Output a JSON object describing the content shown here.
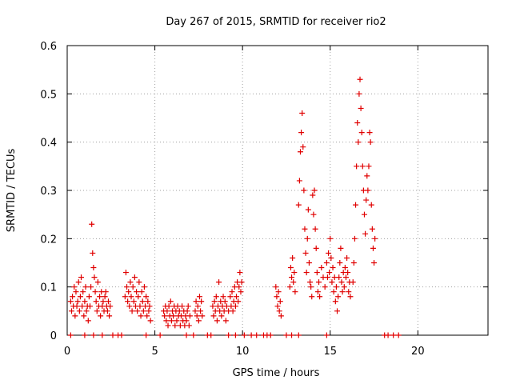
{
  "chart_data": {
    "type": "scatter",
    "title": "Day 267 of 2015, SRMTID for receiver rio2",
    "xlabel": "GPS time / hours",
    "ylabel": "SRMTID / TECUs",
    "xlim": [
      0,
      24
    ],
    "ylim": [
      0,
      0.6
    ],
    "xticks": [
      0,
      5,
      10,
      15,
      20
    ],
    "xtick_labels": [
      "0",
      "5",
      "10",
      "15",
      "20"
    ],
    "yticks": [
      0,
      0.1,
      0.2,
      0.3,
      0.4,
      0.5,
      0.6
    ],
    "ytick_labels": [
      "0",
      "0.1",
      "0.2",
      "0.3",
      "0.4",
      "0.5",
      "0.6"
    ],
    "grid": true,
    "marker": "plus",
    "color": "#e00000",
    "series": [
      {
        "name": "rio2",
        "points": [
          [
            0.2,
            0.07
          ],
          [
            0.25,
            0.05
          ],
          [
            0.3,
            0.08
          ],
          [
            0.35,
            0.06
          ],
          [
            0.4,
            0.1
          ],
          [
            0.45,
            0.04
          ],
          [
            0.5,
            0.09
          ],
          [
            0.55,
            0.06
          ],
          [
            0.6,
            0.07
          ],
          [
            0.65,
            0.11
          ],
          [
            0.7,
            0.05
          ],
          [
            0.75,
            0.08
          ],
          [
            0.8,
            0.12
          ],
          [
            0.85,
            0.06
          ],
          [
            0.9,
            0.09
          ],
          [
            0.95,
            0.04
          ],
          [
            1.0,
            0.07
          ],
          [
            1.05,
            0.1
          ],
          [
            1.1,
            0.05
          ],
          [
            1.15,
            0.06
          ],
          [
            1.2,
            0.03
          ],
          [
            1.25,
            0.08
          ],
          [
            1.3,
            0.06
          ],
          [
            1.35,
            0.1
          ],
          [
            1.4,
            0.23
          ],
          [
            1.45,
            0.17
          ],
          [
            1.5,
            0.14
          ],
          [
            1.55,
            0.12
          ],
          [
            1.6,
            0.09
          ],
          [
            1.65,
            0.07
          ],
          [
            1.7,
            0.05
          ],
          [
            1.75,
            0.11
          ],
          [
            1.8,
            0.06
          ],
          [
            1.85,
            0.08
          ],
          [
            1.9,
            0.04
          ],
          [
            1.95,
            0.09
          ],
          [
            2.0,
            0.06
          ],
          [
            2.05,
            0.07
          ],
          [
            2.1,
            0.05
          ],
          [
            2.15,
            0.08
          ],
          [
            2.2,
            0.09
          ],
          [
            2.25,
            0.06
          ],
          [
            2.3,
            0.05
          ],
          [
            2.35,
            0.07
          ],
          [
            2.4,
            0.04
          ],
          [
            2.45,
            0.06
          ],
          [
            3.3,
            0.08
          ],
          [
            3.35,
            0.13
          ],
          [
            3.4,
            0.1
          ],
          [
            3.45,
            0.07
          ],
          [
            3.5,
            0.09
          ],
          [
            3.55,
            0.06
          ],
          [
            3.6,
            0.11
          ],
          [
            3.65,
            0.08
          ],
          [
            3.7,
            0.05
          ],
          [
            3.75,
            0.1
          ],
          [
            3.8,
            0.07
          ],
          [
            3.85,
            0.12
          ],
          [
            3.9,
            0.06
          ],
          [
            3.95,
            0.09
          ],
          [
            4.0,
            0.05
          ],
          [
            4.05,
            0.08
          ],
          [
            4.1,
            0.11
          ],
          [
            4.15,
            0.06
          ],
          [
            4.2,
            0.04
          ],
          [
            4.25,
            0.09
          ],
          [
            4.3,
            0.07
          ],
          [
            4.35,
            0.05
          ],
          [
            4.4,
            0.1
          ],
          [
            4.45,
            0.06
          ],
          [
            4.5,
            0.08
          ],
          [
            4.55,
            0.04
          ],
          [
            4.6,
            0.07
          ],
          [
            4.65,
            0.05
          ],
          [
            4.7,
            0.06
          ],
          [
            4.75,
            0.03
          ],
          [
            5.5,
            0.05
          ],
          [
            5.55,
            0.04
          ],
          [
            5.6,
            0.06
          ],
          [
            5.65,
            0.03
          ],
          [
            5.7,
            0.05
          ],
          [
            5.75,
            0.02
          ],
          [
            5.8,
            0.06
          ],
          [
            5.85,
            0.04
          ],
          [
            5.9,
            0.07
          ],
          [
            5.95,
            0.03
          ],
          [
            6.0,
            0.05
          ],
          [
            6.05,
            0.04
          ],
          [
            6.1,
            0.06
          ],
          [
            6.15,
            0.02
          ],
          [
            6.2,
            0.05
          ],
          [
            6.25,
            0.03
          ],
          [
            6.3,
            0.06
          ],
          [
            6.35,
            0.04
          ],
          [
            6.4,
            0.05
          ],
          [
            6.45,
            0.02
          ],
          [
            6.5,
            0.04
          ],
          [
            6.55,
            0.06
          ],
          [
            6.6,
            0.03
          ],
          [
            6.65,
            0.05
          ],
          [
            6.7,
            0.02
          ],
          [
            6.75,
            0.04
          ],
          [
            6.8,
            0.03
          ],
          [
            6.85,
            0.05
          ],
          [
            6.9,
            0.06
          ],
          [
            6.95,
            0.02
          ],
          [
            7.0,
            0.04
          ],
          [
            7.3,
            0.05
          ],
          [
            7.35,
            0.07
          ],
          [
            7.4,
            0.04
          ],
          [
            7.45,
            0.06
          ],
          [
            7.5,
            0.03
          ],
          [
            7.55,
            0.08
          ],
          [
            7.6,
            0.05
          ],
          [
            7.65,
            0.07
          ],
          [
            7.7,
            0.04
          ],
          [
            8.3,
            0.06
          ],
          [
            8.35,
            0.04
          ],
          [
            8.4,
            0.07
          ],
          [
            8.45,
            0.05
          ],
          [
            8.5,
            0.08
          ],
          [
            8.55,
            0.03
          ],
          [
            8.6,
            0.06
          ],
          [
            8.65,
            0.11
          ],
          [
            8.7,
            0.05
          ],
          [
            8.75,
            0.07
          ],
          [
            8.8,
            0.04
          ],
          [
            8.85,
            0.06
          ],
          [
            8.9,
            0.08
          ],
          [
            8.95,
            0.05
          ],
          [
            9.0,
            0.07
          ],
          [
            9.05,
            0.03
          ],
          [
            9.1,
            0.06
          ],
          [
            9.2,
            0.05
          ],
          [
            9.3,
            0.08
          ],
          [
            9.35,
            0.06
          ],
          [
            9.4,
            0.09
          ],
          [
            9.45,
            0.05
          ],
          [
            9.5,
            0.07
          ],
          [
            9.55,
            0.1
          ],
          [
            9.6,
            0.06
          ],
          [
            9.65,
            0.08
          ],
          [
            9.7,
            0.11
          ],
          [
            9.75,
            0.07
          ],
          [
            9.8,
            0.1
          ],
          [
            9.85,
            0.13
          ],
          [
            9.9,
            0.09
          ],
          [
            9.95,
            0.11
          ],
          [
            11.9,
            0.1
          ],
          [
            11.95,
            0.08
          ],
          [
            12.0,
            0.06
          ],
          [
            12.05,
            0.09
          ],
          [
            12.1,
            0.05
          ],
          [
            12.15,
            0.07
          ],
          [
            12.2,
            0.04
          ],
          [
            12.7,
            0.1
          ],
          [
            12.75,
            0.14
          ],
          [
            12.8,
            0.12
          ],
          [
            12.85,
            0.16
          ],
          [
            12.9,
            0.11
          ],
          [
            12.95,
            0.13
          ],
          [
            13.0,
            0.09
          ],
          [
            13.2,
            0.27
          ],
          [
            13.25,
            0.32
          ],
          [
            13.3,
            0.38
          ],
          [
            13.35,
            0.42
          ],
          [
            13.4,
            0.46
          ],
          [
            13.45,
            0.39
          ],
          [
            13.5,
            0.3
          ],
          [
            13.55,
            0.22
          ],
          [
            13.6,
            0.17
          ],
          [
            13.65,
            0.13
          ],
          [
            13.7,
            0.2
          ],
          [
            13.75,
            0.26
          ],
          [
            13.8,
            0.15
          ],
          [
            13.85,
            0.11
          ],
          [
            13.9,
            0.1
          ],
          [
            13.95,
            0.08
          ],
          [
            14.0,
            0.29
          ],
          [
            14.05,
            0.25
          ],
          [
            14.1,
            0.3
          ],
          [
            14.15,
            0.22
          ],
          [
            14.2,
            0.18
          ],
          [
            14.25,
            0.13
          ],
          [
            14.3,
            0.09
          ],
          [
            14.35,
            0.11
          ],
          [
            14.4,
            0.08
          ],
          [
            14.5,
            0.14
          ],
          [
            14.6,
            0.12
          ],
          [
            14.7,
            0.1
          ],
          [
            14.8,
            0.15
          ],
          [
            14.85,
            0.12
          ],
          [
            14.9,
            0.17
          ],
          [
            14.95,
            0.13
          ],
          [
            15.0,
            0.2
          ],
          [
            15.05,
            0.16
          ],
          [
            15.1,
            0.11
          ],
          [
            15.15,
            0.14
          ],
          [
            15.2,
            0.09
          ],
          [
            15.25,
            0.12
          ],
          [
            15.3,
            0.07
          ],
          [
            15.35,
            0.1
          ],
          [
            15.4,
            0.05
          ],
          [
            15.45,
            0.08
          ],
          [
            15.5,
            0.12
          ],
          [
            15.55,
            0.15
          ],
          [
            15.6,
            0.18
          ],
          [
            15.65,
            0.11
          ],
          [
            15.7,
            0.09
          ],
          [
            15.75,
            0.13
          ],
          [
            15.8,
            0.1
          ],
          [
            15.85,
            0.14
          ],
          [
            15.9,
            0.12
          ],
          [
            15.95,
            0.16
          ],
          [
            16.0,
            0.13
          ],
          [
            16.05,
            0.09
          ],
          [
            16.1,
            0.11
          ],
          [
            16.15,
            0.08
          ],
          [
            16.3,
            0.11
          ],
          [
            16.35,
            0.15
          ],
          [
            16.4,
            0.2
          ],
          [
            16.45,
            0.27
          ],
          [
            16.5,
            0.35
          ],
          [
            16.55,
            0.44
          ],
          [
            16.6,
            0.4
          ],
          [
            16.65,
            0.5
          ],
          [
            16.7,
            0.53
          ],
          [
            16.75,
            0.47
          ],
          [
            16.8,
            0.42
          ],
          [
            16.85,
            0.35
          ],
          [
            16.9,
            0.3
          ],
          [
            16.95,
            0.25
          ],
          [
            17.0,
            0.21
          ],
          [
            17.05,
            0.28
          ],
          [
            17.1,
            0.33
          ],
          [
            17.15,
            0.3
          ],
          [
            17.2,
            0.35
          ],
          [
            17.25,
            0.42
          ],
          [
            17.3,
            0.4
          ],
          [
            17.35,
            0.27
          ],
          [
            17.4,
            0.22
          ],
          [
            17.45,
            0.18
          ],
          [
            17.5,
            0.15
          ],
          [
            17.55,
            0.2
          ],
          [
            0.2,
            0.0
          ],
          [
            1.0,
            0.0
          ],
          [
            1.5,
            0.0
          ],
          [
            2.0,
            0.0
          ],
          [
            2.6,
            0.0
          ],
          [
            2.9,
            0.0
          ],
          [
            3.1,
            0.0
          ],
          [
            4.5,
            0.0
          ],
          [
            5.3,
            0.0
          ],
          [
            6.8,
            0.0
          ],
          [
            7.2,
            0.0
          ],
          [
            8.0,
            0.0
          ],
          [
            8.2,
            0.0
          ],
          [
            9.2,
            0.0
          ],
          [
            9.6,
            0.0
          ],
          [
            10.1,
            0.0
          ],
          [
            10.5,
            0.0
          ],
          [
            10.8,
            0.0
          ],
          [
            11.2,
            0.0
          ],
          [
            11.4,
            0.0
          ],
          [
            11.6,
            0.0
          ],
          [
            12.5,
            0.0
          ],
          [
            12.8,
            0.0
          ],
          [
            13.2,
            0.0
          ],
          [
            14.8,
            0.0
          ],
          [
            18.1,
            0.0
          ],
          [
            18.3,
            0.0
          ],
          [
            18.6,
            0.0
          ],
          [
            18.9,
            0.0
          ]
        ]
      }
    ]
  }
}
